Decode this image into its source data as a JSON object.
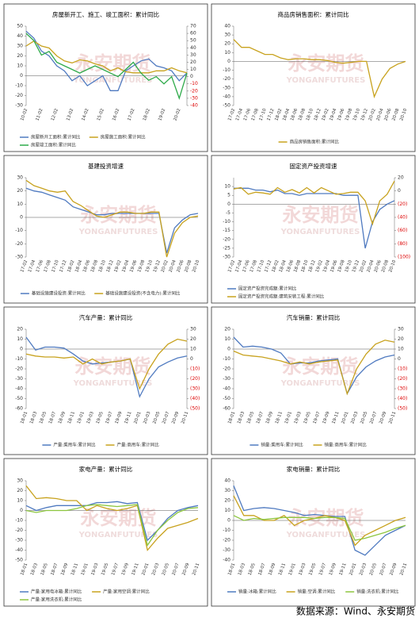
{
  "chart_data": [
    {
      "type": "line",
      "title": "房屋新开工、施工、竣工面积：累计同比",
      "categories": [
        "10-02",
        null,
        "11-02",
        null,
        "12-02",
        null,
        "13-02",
        null,
        "14-02",
        null,
        "15-02",
        null,
        "16-02",
        null,
        "17-02",
        null,
        "18-02",
        null,
        "19-02",
        null,
        "20-02",
        null
      ],
      "ylim": [
        -30,
        50
      ],
      "yticks": [
        -30,
        -20,
        -10,
        0,
        10,
        20,
        30,
        40,
        50
      ],
      "y2lim": [
        -40,
        70
      ],
      "y2ticks": [
        -40,
        -30,
        -20,
        -10,
        0,
        10,
        20,
        30,
        40,
        50,
        60,
        70
      ],
      "series": [
        {
          "name": "房屋新开工面积:累计同比",
          "color": "#4f7ac0",
          "values": [
            45,
            38,
            25,
            20,
            10,
            5,
            -5,
            0,
            -10,
            -5,
            0,
            -15,
            -15,
            5,
            10,
            15,
            17,
            10,
            8,
            5,
            -5,
            3
          ]
        },
        {
          "name": "房屋施工面积:累计同比",
          "color": "#c8a21e",
          "values": [
            30,
            35,
            30,
            28,
            20,
            15,
            13,
            16,
            15,
            12,
            10,
            5,
            8,
            4,
            3,
            3,
            3,
            5,
            5,
            8,
            5,
            3
          ]
        },
        {
          "name": "房屋竣工面积:累计同比",
          "color": "#2eaa4a",
          "axis": "y2",
          "values": [
            60,
            50,
            30,
            35,
            20,
            15,
            10,
            5,
            10,
            15,
            10,
            5,
            0,
            10,
            20,
            5,
            -5,
            0,
            -10,
            0,
            -30,
            5
          ]
        }
      ]
    },
    {
      "type": "line",
      "title": "商品房销售面积：累计同比",
      "categories": [
        "17-02",
        "17-04",
        "17-06",
        "17-08",
        "17-10",
        "17-12",
        "18-02",
        "18-04",
        "18-06",
        "18-08",
        "18-10",
        "18-12",
        "19-02",
        "19-04",
        "19-06",
        "19-08",
        "19-10",
        "19-12",
        "20-02",
        "20-04",
        "20-06",
        "20-08",
        "20-10"
      ],
      "ylim": [
        -50,
        40
      ],
      "yticks": [
        -50,
        -40,
        -30,
        -20,
        -10,
        0,
        10,
        20,
        30,
        40
      ],
      "series": [
        {
          "name": "商品房销售面积:累计同比",
          "color": "#c8a21e",
          "values": [
            25,
            16,
            16,
            12,
            8,
            8,
            4,
            2,
            3,
            3,
            2,
            2,
            1,
            -1,
            -2,
            -1,
            0,
            0,
            -40,
            -20,
            -8,
            -3,
            0
          ]
        }
      ]
    },
    {
      "type": "line",
      "title": "基建投资增速",
      "categories": [
        "17-02",
        "17-04",
        "17-06",
        "17-08",
        "17-10",
        "17-12",
        "18-02",
        "18-04",
        "18-06",
        "18-08",
        "18-10",
        "18-12",
        "19-02",
        "19-04",
        "19-06",
        "19-08",
        "19-10",
        "19-12",
        "20-02",
        "20-04",
        "20-06",
        "20-08",
        "20-10"
      ],
      "ylim": [
        -30,
        30
      ],
      "yticks": [
        -30,
        -20,
        -10,
        0,
        10,
        20,
        30
      ],
      "series": [
        {
          "name": "基础设施建设投资:累计同比",
          "color": "#4f7ac0",
          "values": [
            22,
            20,
            19,
            17,
            15,
            13,
            8,
            6,
            4,
            2,
            2,
            3,
            3,
            3,
            3,
            3,
            3,
            3,
            -27,
            -8,
            -2,
            2,
            3
          ]
        },
        {
          "name": "基础设施建设投资(不含电力):累计同比",
          "color": "#c8a21e",
          "values": [
            28,
            24,
            22,
            20,
            19,
            20,
            12,
            9,
            5,
            1,
            0,
            2,
            4,
            4,
            3,
            3,
            4,
            4,
            -30,
            -12,
            -4,
            0,
            1
          ]
        }
      ]
    },
    {
      "type": "line",
      "title": "固定资产投资增速",
      "categories": [
        "17-02",
        "17-04",
        "17-06",
        "17-08",
        "17-10",
        "17-12",
        "18-02",
        "18-04",
        "18-06",
        "18-08",
        "18-10",
        "18-12",
        "19-02",
        "19-04",
        "19-06",
        "19-08",
        "19-10",
        "19-12",
        "20-02",
        "20-04",
        "20-06",
        "20-08",
        "20-10"
      ],
      "ylim": [
        -30,
        15
      ],
      "yticks": [
        -30,
        -25,
        -20,
        -15,
        -10,
        -5,
        0,
        5,
        10
      ],
      "y2lim": [
        -100,
        20
      ],
      "y2ticks": [
        {
          "value": -100,
          "label": "(100)"
        },
        {
          "value": -80,
          "label": "(80)"
        },
        {
          "value": -60,
          "label": "(60)"
        },
        {
          "value": -40,
          "label": "(40)"
        },
        {
          "value": -20,
          "label": "(20)"
        },
        0,
        20
      ],
      "series": [
        {
          "name": "固定资产投资完成额:累计同比",
          "color": "#4f7ac0",
          "values": [
            9,
            9,
            9,
            8,
            8,
            7,
            8,
            6,
            6,
            5,
            6,
            6,
            6,
            6,
            6,
            5,
            5,
            5,
            -25,
            -10,
            -3,
            0,
            2
          ]
        },
        {
          "name": "固定资产投资完成额:建筑安装工程:累计同比",
          "color": "#c8a21e",
          "axis": "y2",
          "values": [
            3,
            5,
            -5,
            -2,
            -3,
            -5,
            5,
            -2,
            2,
            -3,
            5,
            -3,
            5,
            0,
            -5,
            -4,
            -2,
            -2,
            -15,
            -50,
            -15,
            -5,
            15
          ]
        }
      ]
    },
    {
      "type": "line",
      "title": "汽车产量：累计同比",
      "categories": [
        "18-01",
        "18-03",
        "18-05",
        "18-07",
        "18-09",
        "18-11",
        "19-01",
        "19-03",
        "19-05",
        "19-07",
        "19-09",
        "19-11",
        "20-01",
        "20-03",
        "20-05",
        "20-07",
        "20-09",
        "20-11"
      ],
      "ylim": [
        -60,
        20
      ],
      "yticks": [
        -60,
        -50,
        -40,
        -30,
        -20,
        -10,
        0,
        10,
        20
      ],
      "y2lim": [
        -50,
        30
      ],
      "y2ticks": [
        {
          "value": -50,
          "label": "(50)"
        },
        {
          "value": -40,
          "label": "(40)"
        },
        {
          "value": -30,
          "label": "(30)"
        },
        {
          "value": -20,
          "label": "(20)"
        },
        {
          "value": -10,
          "label": "(10)"
        },
        0,
        10,
        20,
        30
      ],
      "series": [
        {
          "name": "产量:乘用车:累计同比",
          "color": "#4f7ac0",
          "values": [
            12,
            -1,
            2,
            2,
            1,
            -5,
            -12,
            -15,
            -14,
            -13,
            -12,
            -10,
            -48,
            -30,
            -18,
            -13,
            -9,
            -7
          ]
        },
        {
          "name": "产量:商用车:累计同比",
          "color": "#c8a21e",
          "axis": "y2",
          "values": [
            5,
            3,
            2,
            2,
            1,
            2,
            -5,
            0,
            -5,
            -3,
            -2,
            0,
            -30,
            -10,
            5,
            15,
            20,
            18
          ]
        }
      ]
    },
    {
      "type": "line",
      "title": "汽车销量：累计同比",
      "categories": [
        "18-01",
        "18-03",
        "18-05",
        "18-07",
        "18-09",
        "18-11",
        "19-01",
        "19-03",
        "19-05",
        "19-07",
        "19-09",
        "19-11",
        "20-01",
        "20-03",
        "20-05",
        "20-07",
        "20-09",
        "20-11"
      ],
      "ylim": [
        -60,
        20
      ],
      "yticks": [
        -60,
        -50,
        -40,
        -30,
        -20,
        -10,
        0,
        10,
        20
      ],
      "y2lim": [
        -50,
        30
      ],
      "y2ticks": [
        {
          "value": -50,
          "label": "(50)"
        },
        {
          "value": -40,
          "label": "(40)"
        },
        {
          "value": -30,
          "label": "(30)"
        },
        {
          "value": -20,
          "label": "(20)"
        },
        {
          "value": -10,
          "label": "(10)"
        },
        0,
        10,
        20,
        30
      ],
      "series": [
        {
          "name": "销量:乘用车:累计同比",
          "color": "#4f7ac0",
          "values": [
            12,
            2,
            3,
            2,
            0,
            -4,
            -15,
            -14,
            -14,
            -12,
            -11,
            -10,
            -45,
            -28,
            -18,
            -12,
            -8,
            -6
          ]
        },
        {
          "name": "销量:商用车:累计同比",
          "color": "#c8a21e",
          "axis": "y2",
          "values": [
            8,
            4,
            3,
            2,
            0,
            -2,
            -5,
            -3,
            -5,
            -3,
            -2,
            -1,
            -35,
            -10,
            5,
            15,
            19,
            17
          ]
        }
      ]
    },
    {
      "type": "line",
      "title": "家电产量：累计同比",
      "categories": [
        "18-01",
        "18-03",
        "18-05",
        "18-07",
        "18-09",
        "18-11",
        "19-01",
        "19-03",
        "19-05",
        "19-07",
        "19-09",
        "19-11",
        "20-01",
        "20-03",
        "20-05",
        "20-07",
        "20-09",
        "20-11"
      ],
      "ylim": [
        -50,
        30
      ],
      "yticks": [
        -50,
        -40,
        -30,
        -20,
        -10,
        0,
        10,
        20,
        30
      ],
      "series": [
        {
          "name": "产量:家用电冰箱:累计同比",
          "color": "#4f7ac0",
          "values": [
            5,
            0,
            3,
            5,
            5,
            5,
            5,
            8,
            8,
            9,
            7,
            8,
            -30,
            -20,
            -8,
            0,
            3,
            5
          ]
        },
        {
          "name": "产量:家用空调:累计同比",
          "color": "#c8a21e",
          "values": [
            25,
            12,
            13,
            12,
            10,
            10,
            0,
            5,
            2,
            0,
            2,
            5,
            -40,
            -28,
            -18,
            -15,
            -12,
            -8
          ]
        },
        {
          "name": "产量:家用洗衣机:累计同比",
          "color": "#8dc63f",
          "values": [
            0,
            -2,
            0,
            0,
            0,
            2,
            5,
            6,
            5,
            4,
            5,
            6,
            -35,
            -20,
            -10,
            -2,
            2,
            3
          ]
        }
      ]
    },
    {
      "type": "line",
      "title": "家电销量：累计同比",
      "categories": [
        "18-01",
        "18-03",
        "18-05",
        "18-07",
        "18-09",
        "18-11",
        "19-01",
        "19-03",
        "19-05",
        "19-07",
        "19-09",
        "19-11",
        "20-01",
        "20-03",
        "20-05",
        "20-07",
        "20-09",
        "20-11"
      ],
      "ylim": [
        -40,
        40
      ],
      "yticks": [
        -40,
        -30,
        -20,
        -10,
        0,
        10,
        20,
        30,
        40
      ],
      "series": [
        {
          "name": "销量:冰箱:累计同比",
          "color": "#4f7ac0",
          "values": [
            35,
            10,
            12,
            13,
            12,
            10,
            8,
            5,
            6,
            5,
            4,
            4,
            -30,
            -35,
            -25,
            -15,
            -10,
            -5
          ]
        },
        {
          "name": "销量:空调:累计同比",
          "color": "#c8a21e",
          "values": [
            25,
            5,
            5,
            0,
            0,
            5,
            -5,
            0,
            2,
            5,
            3,
            0,
            -25,
            -15,
            -10,
            -5,
            0,
            3
          ]
        },
        {
          "name": "销量:洗衣机:累计同比",
          "color": "#8dc63f",
          "values": [
            5,
            0,
            2,
            1,
            2,
            3,
            3,
            3,
            2,
            3,
            3,
            2,
            -20,
            -18,
            -15,
            -12,
            -8,
            -5
          ]
        }
      ]
    }
  ],
  "watermark": {
    "cn": "永安期货",
    "en": "YONGANFUTURES"
  },
  "footer": "数据来源：Wind、永安期货"
}
